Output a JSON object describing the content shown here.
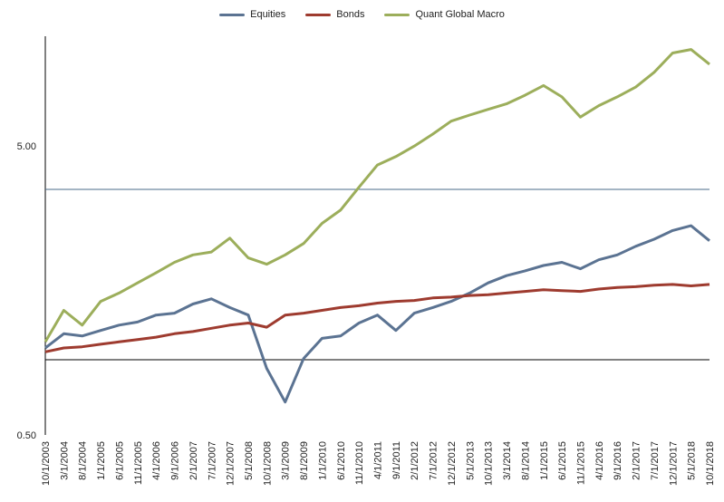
{
  "chart_data": {
    "type": "line",
    "title": "",
    "xlabel": "",
    "ylabel": "",
    "y_scale": "log",
    "ylim": [
      0.5,
      12
    ],
    "y_ticks": [
      {
        "value": 0.5,
        "label": "0.50"
      },
      {
        "value": 5,
        "label": "5.00"
      }
    ],
    "grid": "horizontal lines at 5.00 and 1.00",
    "legend": "top-center",
    "x_tick_labels": [
      "10/1/2003",
      "3/1/2004",
      "8/1/2004",
      "1/1/2005",
      "6/1/2005",
      "11/1/2005",
      "4/1/2006",
      "9/1/2006",
      "2/1/2007",
      "7/1/2007",
      "12/1/2007",
      "5/1/2008",
      "10/1/2008",
      "3/1/2009",
      "8/1/2009",
      "1/1/2010",
      "6/1/2010",
      "11/1/2010",
      "4/1/2011",
      "9/1/2011",
      "2/1/2012",
      "7/1/2012",
      "12/1/2012",
      "5/1/2013",
      "10/1/2013",
      "3/1/2014",
      "8/1/2014",
      "1/1/2015",
      "6/1/2015",
      "11/1/2015",
      "4/1/2016",
      "9/1/2016",
      "2/1/2017",
      "7/1/2017",
      "12/1/2017",
      "5/1/2018",
      "10/1/2018"
    ],
    "x": [
      "10/1/2003",
      "3/1/2004",
      "8/1/2004",
      "1/1/2005",
      "6/1/2005",
      "11/1/2005",
      "4/1/2006",
      "9/1/2006",
      "2/1/2007",
      "7/1/2007",
      "12/1/2007",
      "5/1/2008",
      "10/1/2008",
      "3/1/2009",
      "8/1/2009",
      "1/1/2010",
      "6/1/2010",
      "11/1/2010",
      "4/1/2011",
      "9/1/2011",
      "2/1/2012",
      "7/1/2012",
      "12/1/2012",
      "5/1/2013",
      "10/1/2013",
      "3/1/2014",
      "8/1/2014",
      "1/1/2015",
      "6/1/2015",
      "11/1/2015",
      "4/1/2016",
      "9/1/2016",
      "2/1/2017",
      "7/1/2017",
      "12/1/2017",
      "5/1/2018",
      "10/1/2018"
    ],
    "series": [
      {
        "name": "Equities",
        "color": "#5b7392",
        "values": [
          1.0,
          1.12,
          1.1,
          1.15,
          1.2,
          1.23,
          1.3,
          1.32,
          1.42,
          1.48,
          1.38,
          1.3,
          0.85,
          0.65,
          0.92,
          1.08,
          1.1,
          1.22,
          1.3,
          1.15,
          1.32,
          1.38,
          1.45,
          1.55,
          1.68,
          1.78,
          1.85,
          1.93,
          1.98,
          1.88,
          2.02,
          2.1,
          2.25,
          2.38,
          2.55,
          2.65,
          2.35
        ]
      },
      {
        "name": "Bonds",
        "color": "#9e3b2f",
        "values": [
          0.97,
          1.0,
          1.01,
          1.03,
          1.05,
          1.07,
          1.09,
          1.12,
          1.14,
          1.17,
          1.2,
          1.22,
          1.18,
          1.3,
          1.32,
          1.35,
          1.38,
          1.4,
          1.43,
          1.45,
          1.46,
          1.49,
          1.5,
          1.52,
          1.53,
          1.55,
          1.57,
          1.59,
          1.58,
          1.57,
          1.6,
          1.62,
          1.63,
          1.65,
          1.66,
          1.64,
          1.66
        ]
      },
      {
        "name": "Quant Global Macro",
        "color": "#9cae5b",
        "values": [
          1.05,
          1.35,
          1.2,
          1.45,
          1.55,
          1.68,
          1.82,
          1.98,
          2.1,
          2.15,
          2.4,
          2.05,
          1.95,
          2.1,
          2.3,
          2.7,
          3.0,
          3.6,
          4.3,
          4.6,
          5.0,
          5.5,
          6.1,
          6.4,
          6.7,
          7.0,
          7.5,
          8.1,
          7.4,
          6.3,
          6.9,
          7.4,
          8.0,
          9.0,
          10.5,
          10.8,
          9.6
        ]
      }
    ]
  }
}
